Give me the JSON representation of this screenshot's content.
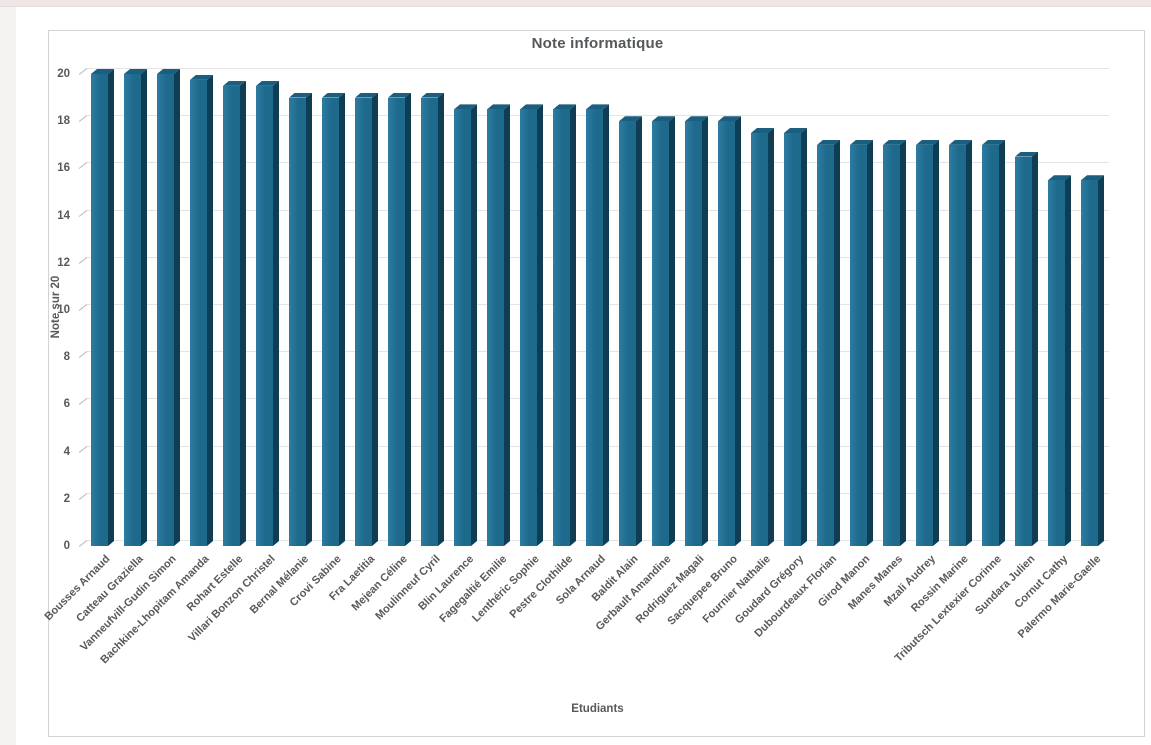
{
  "chart_data": {
    "type": "bar",
    "title": "Note informatique",
    "xlabel": "Etudiants",
    "ylabel": "Note sur 20",
    "ylim": [
      0,
      20
    ],
    "yticks": [
      0,
      2,
      4,
      6,
      8,
      10,
      12,
      14,
      16,
      18,
      20
    ],
    "grid": true,
    "legend": false,
    "effect": "3d-bars",
    "categories": [
      "Bousses Arnaud",
      "Catteau Graziella",
      "Vanneufvill-Gudin Simon",
      "Bachkine-Lhopitam Amanda",
      "Rohart Estelle",
      "Villari Bonzon Christel",
      "Bernal Mélanie",
      "Crovi Sabine",
      "Fra Laetitia",
      "Mejean Céline",
      "Moulinneuf Cyril",
      "Blin Laurence",
      "Fagegaltié Emilie",
      "Lenthéric Sophie",
      "Pestre Clothilde",
      "Sola Arnaud",
      "Baldit Alain",
      "Gerbault Amandine",
      "Rodriguez Magali",
      "Sacquepee Bruno",
      "Fournier Nathalie",
      "Goudard Grégory",
      "Dubourdeaux Florian",
      "Girod Manon",
      "Manes Manes",
      "Mzali Audrey",
      "Rossin Marine",
      "Tributsch Lextexier Corinne",
      "Sundara Julien",
      "Cornut Cathy",
      "Palermo Marie-Gaelle"
    ],
    "values": [
      20,
      20,
      20,
      19.75,
      19.5,
      19.5,
      19,
      19,
      19,
      19,
      19,
      18.5,
      18.5,
      18.5,
      18.5,
      18.5,
      18,
      18,
      18,
      18,
      17.5,
      17.5,
      17,
      17,
      17,
      17,
      17,
      17,
      16.5,
      15.5,
      15.5
    ],
    "colors": {
      "bar_front": "#1e6a8c",
      "bar_front_highlight": "#2e7ca3",
      "bar_top": "#1a5f7f",
      "bar_side": "#0f3d54",
      "gridline": "#e4e4e4",
      "text": "#58595b"
    }
  }
}
